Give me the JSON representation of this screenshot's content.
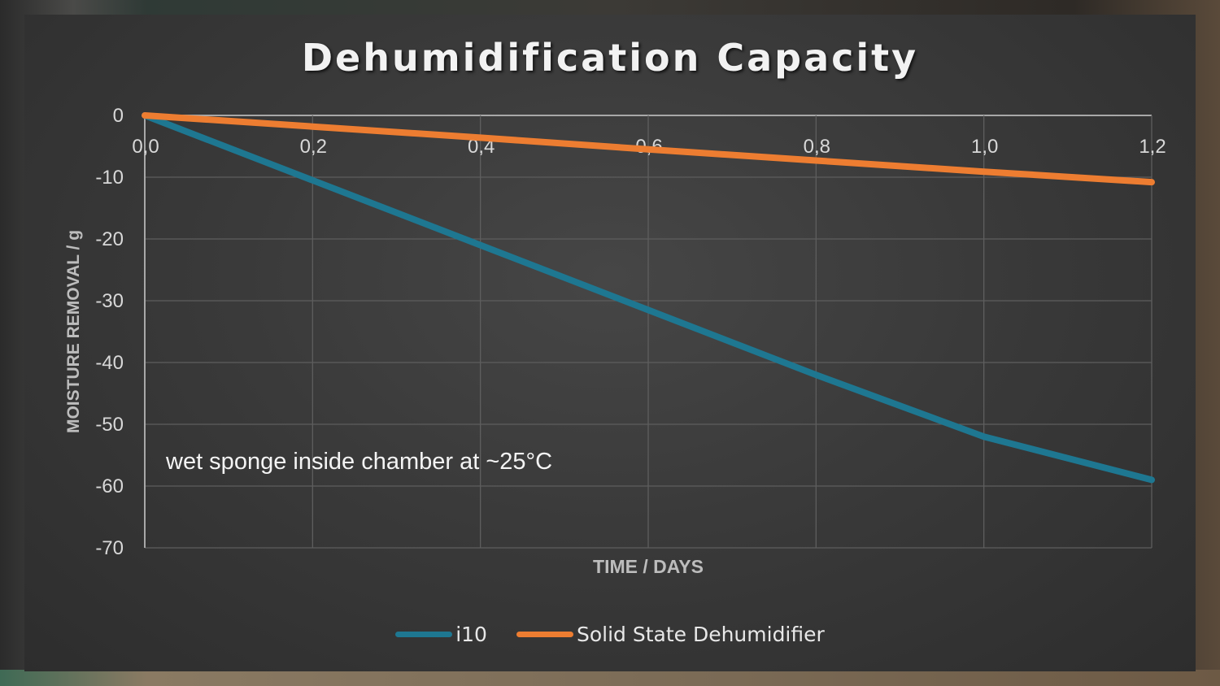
{
  "chart_data": {
    "type": "line",
    "title": "Dehumidification Capacity",
    "xlabel": "TIME / DAYS",
    "ylabel": "MOISTURE REMOVAL / g",
    "xlim": [
      0,
      1.2
    ],
    "ylim": [
      -70,
      0
    ],
    "x_ticks": [
      "0,0",
      "0,2",
      "0,4",
      "0,6",
      "0,8",
      "1,0",
      "1,2"
    ],
    "x_tick_values": [
      0,
      0.2,
      0.4,
      0.6,
      0.8,
      1.0,
      1.2
    ],
    "y_ticks": [
      "0",
      "-10",
      "-20",
      "-30",
      "-40",
      "-50",
      "-60",
      "-70"
    ],
    "y_tick_values": [
      0,
      -10,
      -20,
      -30,
      -40,
      -50,
      -60,
      -70
    ],
    "grid": true,
    "legend_position": "bottom",
    "annotation": "wet sponge inside chamber at ~25°C",
    "series": [
      {
        "name": "i10",
        "color": "#1e7791",
        "x": [
          0,
          0.2,
          0.4,
          0.6,
          0.8,
          0.95,
          1.0,
          1.2
        ],
        "y": [
          0,
          -10.5,
          -21,
          -31.5,
          -42,
          -49.5,
          -52,
          -59
        ]
      },
      {
        "name": "Solid State Dehumidifier",
        "color": "#ed7d31",
        "x": [
          0,
          0.2,
          0.4,
          0.6,
          0.8,
          1.0,
          1.2
        ],
        "y": [
          0,
          -1.8,
          -3.6,
          -5.5,
          -7.3,
          -9.1,
          -10.8
        ]
      }
    ]
  }
}
